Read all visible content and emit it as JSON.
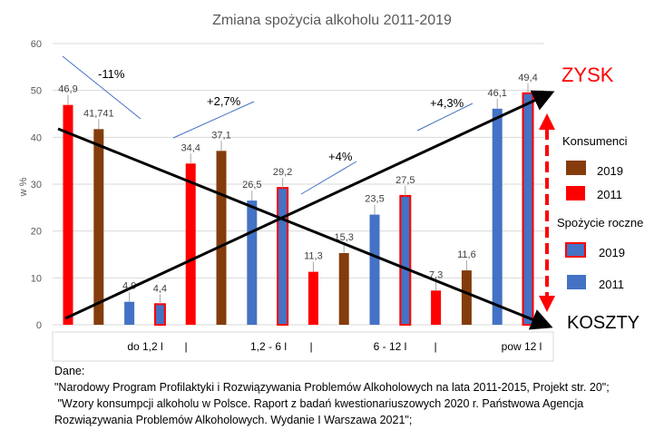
{
  "chart_data": {
    "type": "bar",
    "title": "Zmiana spożycia alkoholu 2011-2019",
    "ylabel": "w %",
    "ylim": [
      0,
      60
    ],
    "yticks": [
      "0",
      "10",
      "20",
      "30",
      "40",
      "50",
      "60"
    ],
    "grid": true,
    "categories": [
      "do 1,2 l",
      "1,2 - 6 l",
      "6 - 12 l",
      "pow 12 l"
    ],
    "separator": "|",
    "series": [
      {
        "name": "Konsumenci 2011",
        "color": "#ff0000",
        "style": "fill",
        "values": [
          46.9,
          34.4,
          11.3,
          7.3
        ],
        "labels": [
          "46,9",
          "34,4",
          "11,3",
          "7,3"
        ]
      },
      {
        "name": "Konsumenci 2019",
        "color": "#843c0c",
        "style": "fill",
        "values": [
          41.741,
          37.1,
          15.3,
          11.6
        ],
        "labels": [
          "41,741",
          "37,1",
          "15,3",
          "11,6"
        ]
      },
      {
        "name": "Spożycie roczne 2011",
        "color": "#4472c4",
        "style": "fill",
        "values": [
          4.9,
          26.5,
          23.5,
          46.1
        ],
        "labels": [
          "4,9",
          "26,5",
          "23,5",
          "46,1"
        ]
      },
      {
        "name": "Spożycie roczne 2019",
        "color": "#4472c4",
        "style": "outline",
        "outline": "#ff0000",
        "values": [
          4.4,
          29.2,
          27.5,
          49.4
        ],
        "labels": [
          "4,4",
          "29,2",
          "27,5",
          "49,4"
        ]
      }
    ],
    "annotations": [
      "-11%",
      "+2,7%",
      "+4%",
      "+4,3%"
    ],
    "arrows": {
      "up_label": "ZYSK",
      "down_label": "KOSZTY",
      "up_color": "#ff0000",
      "down_color": "#000000"
    },
    "legend": {
      "placement": "right",
      "group1": "Konsumenci",
      "group1_items": [
        "2019",
        "2011"
      ],
      "group2": "Spożycie roczne",
      "group2_items": [
        "2019",
        "2011"
      ]
    }
  },
  "sources": {
    "heading": "Dane:",
    "line1": "\"Narodowy Program Profilaktyki i Rozwiązywania Problemów Alkoholowych na lata 2011-2015, Projekt str. 20\";",
    "line2": " \"Wzory konsumpcji alkoholu w Polsce. Raport z badań kwestionariuszowych 2020 r. Państwowa Agencja",
    "line3": "Rozwiązywania Problemów Alkoholowych. Wydanie I Warszawa 2021\";"
  }
}
